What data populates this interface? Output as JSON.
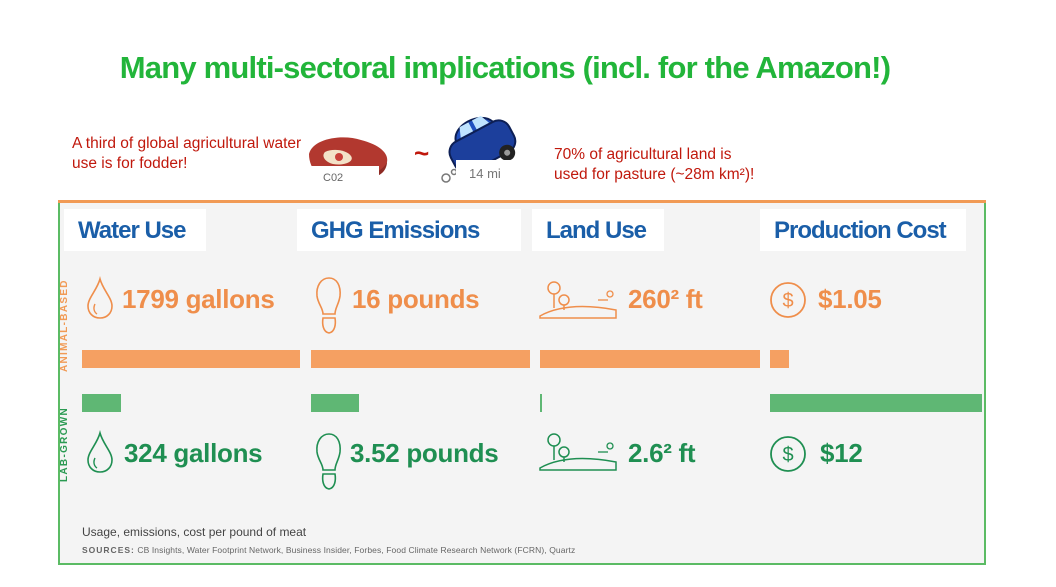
{
  "title": "Many multi-sectoral implications (incl. for the Amazon!)",
  "note_left": "A third of global agricultural water use is for fodder!",
  "note_right_line1": "70% of agricultural land is",
  "note_right_line2": "used for pasture (~28m km²)!",
  "comparison": {
    "tilde": "~",
    "co2_label": "C02",
    "distance_label": "14 mi"
  },
  "columns": {
    "water": {
      "title": "Water Use",
      "animal": "1799 gallons",
      "lab": "324 gallons"
    },
    "ghg": {
      "title": "GHG Emissions",
      "animal": "16 pounds",
      "lab": "3.52 pounds"
    },
    "land": {
      "title": "Land Use",
      "animal": "260² ft",
      "lab": "2.6² ft"
    },
    "cost": {
      "title": "Production Cost",
      "animal": "$1.05",
      "lab": "$12"
    }
  },
  "side_labels": {
    "animal": "ANIMAL-BASED",
    "lab": "LAB-GROWN"
  },
  "bar_fraction": {
    "water": {
      "animal": 1.0,
      "lab": 0.18
    },
    "ghg": {
      "animal": 1.0,
      "lab": 0.22
    },
    "land": {
      "animal": 1.0,
      "lab": 0.01
    },
    "cost": {
      "animal": 0.09,
      "lab": 1.0
    }
  },
  "footnote": "Usage, emissions, cost per pound of meat",
  "sources_label": "SOURCES:",
  "sources_text": "CB Insights, Water Footprint Network, Business Insider, Forbes, Food Climate Research Network (FCRN), Quartz",
  "colors": {
    "title_green": "#22b53a",
    "note_red": "#c0180c",
    "header_blue": "#1a5ea8",
    "animal_orange": "#ef8e4b",
    "lab_green": "#1f8f52"
  }
}
